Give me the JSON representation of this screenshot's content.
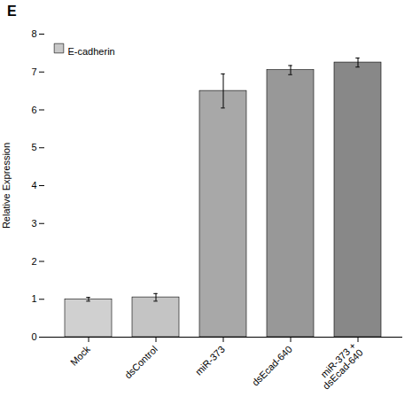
{
  "chart_data": {
    "type": "bar",
    "categories": [
      "Mock",
      "dsControl",
      "miR-373",
      "dsEcad-640",
      "miR-373 +\ndsEcad-640"
    ],
    "series": [
      {
        "name": "E-cadherin",
        "color": "#c8c8c8",
        "values": [
          1.0,
          1.05,
          6.5,
          7.05,
          7.25
        ],
        "errors": [
          0.05,
          0.1,
          0.45,
          0.12,
          0.12
        ],
        "colors": [
          "#d0d0d0",
          "#c4c4c4",
          "#a8a8a8",
          "#989898",
          "#888888"
        ]
      }
    ],
    "ylabel": "Relative Expression",
    "ylim": [
      0,
      8
    ],
    "yticks": [
      0,
      1,
      2,
      3,
      4,
      5,
      6,
      7,
      8
    ],
    "legend": "upper left",
    "annotations": [
      "E"
    ]
  }
}
